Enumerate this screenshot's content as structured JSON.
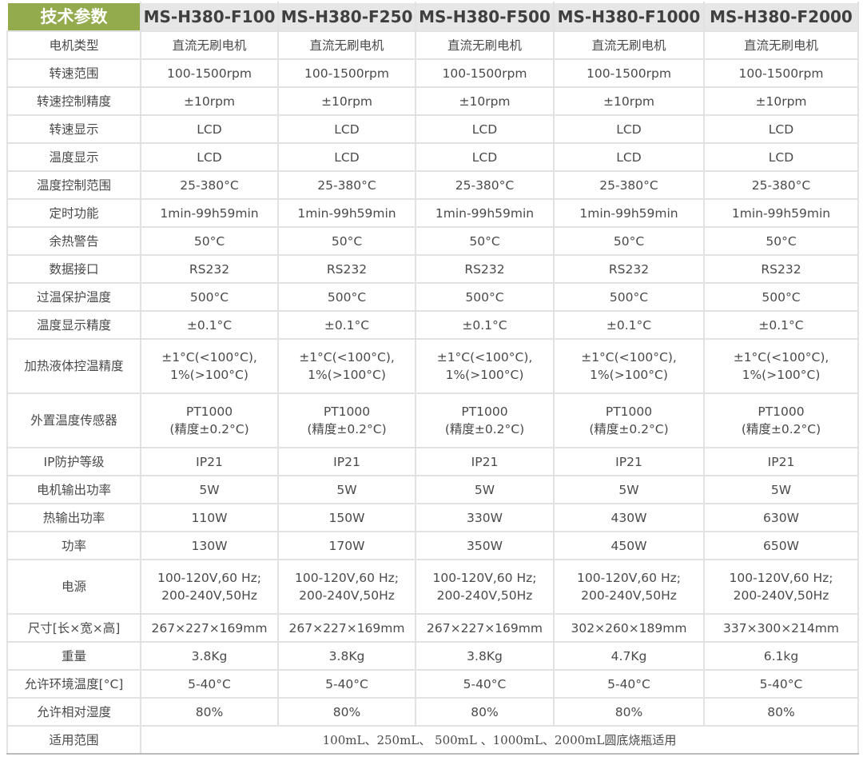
{
  "table": {
    "header": [
      "技术参数",
      "MS-H380-F100",
      "MS-H380-F250",
      "MS-H380-F500",
      "MS-H380-F1000",
      "MS-H380-F2000"
    ],
    "header_color": "#93ab4c",
    "rows": [
      {
        "label": "电机类型",
        "values": [
          "直流无刷电机",
          "直流无刷电机",
          "直流无刷电机",
          "直流无刷电机",
          "直流无刷电机"
        ]
      },
      {
        "label": "转速范围",
        "values": [
          "100-1500rpm",
          "100-1500rpm",
          "100-1500rpm",
          "100-1500rpm",
          "100-1500rpm"
        ]
      },
      {
        "label": "转速控制精度",
        "values": [
          "±10rpm",
          "±10rpm",
          "±10rpm",
          "±10rpm",
          "±10rpm"
        ]
      },
      {
        "label": "转速显示",
        "values": [
          "LCD",
          "LCD",
          "LCD",
          "LCD",
          "LCD"
        ]
      },
      {
        "label": "温度显示",
        "values": [
          "LCD",
          "LCD",
          "LCD",
          "LCD",
          "LCD"
        ]
      },
      {
        "label": "温度控制范围",
        "values": [
          "25-380°C",
          "25-380°C",
          "25-380°C",
          "25-380°C",
          "25-380°C"
        ]
      },
      {
        "label": "定时功能",
        "values": [
          "1min-99h59min",
          "1min-99h59min",
          "1min-99h59min",
          "1min-99h59min",
          "1min-99h59min"
        ]
      },
      {
        "label": "余热警告",
        "values": [
          "50°C",
          "50°C",
          "50°C",
          "50°C",
          "50°C"
        ]
      },
      {
        "label": "数据接口",
        "values": [
          "RS232",
          "RS232",
          "RS232",
          "RS232",
          "RS232"
        ]
      },
      {
        "label": "过温保护温度",
        "values": [
          "500°C",
          "500°C",
          "500°C",
          "500°C",
          "500°C"
        ]
      },
      {
        "label": "温度显示精度",
        "values": [
          "±0.1°C",
          "±0.1°C",
          "±0.1°C",
          "±0.1°C",
          "±0.1°C"
        ]
      },
      {
        "label": "加热液体控温精度",
        "values": [
          [
            "±1°C(<100°C),",
            "1%(>100°C)"
          ],
          [
            "±1°C(<100°C),",
            "1%(>100°C)"
          ],
          [
            "±1°C(<100°C),",
            "1%(>100°C)"
          ],
          [
            "±1°C(<100°C),",
            "1%(>100°C)"
          ],
          [
            "±1°C(<100°C),",
            "1%(>100°C)"
          ]
        ]
      },
      {
        "label": "外置温度传感器",
        "values": [
          [
            "PT1000",
            "(精度±0.2°C)"
          ],
          [
            "PT1000",
            "(精度±0.2°C)"
          ],
          [
            "PT1000",
            "(精度±0.2°C)"
          ],
          [
            "PT1000",
            "(精度±0.2°C)"
          ],
          [
            "PT1000",
            "(精度±0.2°C)"
          ]
        ]
      },
      {
        "label": "IP防护等级",
        "values": [
          "IP21",
          "IP21",
          "IP21",
          "IP21",
          "IP21"
        ]
      },
      {
        "label": "电机输出功率",
        "values": [
          "5W",
          "5W",
          "5W",
          "5W",
          "5W"
        ]
      },
      {
        "label": "热输出功率",
        "values": [
          "110W",
          "150W",
          "330W",
          "430W",
          "630W"
        ]
      },
      {
        "label": "功率",
        "values": [
          "130W",
          "170W",
          "350W",
          "450W",
          "650W"
        ]
      },
      {
        "label": "电源",
        "values": [
          [
            "100-120V,60 Hz;",
            "200-240V,50Hz"
          ],
          [
            "100-120V,60 Hz;",
            "200-240V,50Hz"
          ],
          [
            "100-120V,60 Hz;",
            "200-240V,50Hz"
          ],
          [
            "100-120V,60 Hz;",
            "200-240V,50Hz"
          ],
          [
            "100-120V,60 Hz;",
            "200-240V,50Hz"
          ]
        ]
      },
      {
        "label": "尺寸[长×宽×高]",
        "values": [
          "267×227×169mm",
          "267×227×169mm",
          "267×227×169mm",
          "302×260×189mm",
          "337×300×214mm"
        ]
      },
      {
        "label": "重量",
        "values": [
          "3.8Kg",
          "3.8Kg",
          "3.8Kg",
          "4.7Kg",
          "6.1kg"
        ]
      },
      {
        "label": "允许环境温度[°C]",
        "values": [
          "5-40°C",
          "5-40°C",
          "5-40°C",
          "5-40°C",
          "5-40°C"
        ]
      },
      {
        "label": "允许相对湿度",
        "values": [
          "80%",
          "80%",
          "80%",
          "80%",
          "80%"
        ]
      }
    ],
    "footer": {
      "label": "适用范围",
      "value": "100mL、250mL、 500mL 、1000mL、2000mL圆底烧瓶适用"
    }
  }
}
